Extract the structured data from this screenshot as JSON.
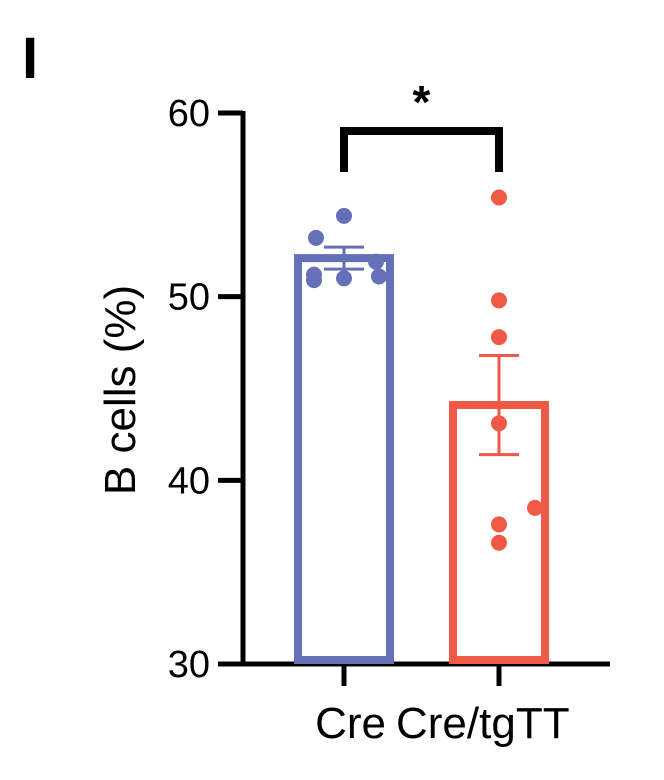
{
  "panel_label": "I",
  "chart_data": {
    "type": "bar",
    "title": "",
    "xlabel": "",
    "ylabel": "B cells (%)",
    "ylim": [
      30,
      60
    ],
    "yticks": [
      30,
      40,
      50,
      60
    ],
    "ytick_labels": [
      "30",
      "40",
      "50",
      "60"
    ],
    "grid": false,
    "legend": "none",
    "categories": [
      "Cre",
      "Cre/tgTT"
    ],
    "colors": [
      "#6470b8",
      "#ee5a45"
    ],
    "series": [
      {
        "values": [
          52.1,
          44.1
        ],
        "error": [
          0.6,
          2.7
        ]
      }
    ],
    "points": [
      [
        54.4,
        53.2,
        51.9,
        51.2,
        50.9,
        51.0,
        51.1
      ],
      [
        55.4,
        49.8,
        47.8,
        43.1,
        38.5,
        37.6,
        36.6
      ]
    ],
    "significance": {
      "between": [
        "Cre",
        "Cre/tgTT"
      ],
      "label": "*"
    }
  }
}
